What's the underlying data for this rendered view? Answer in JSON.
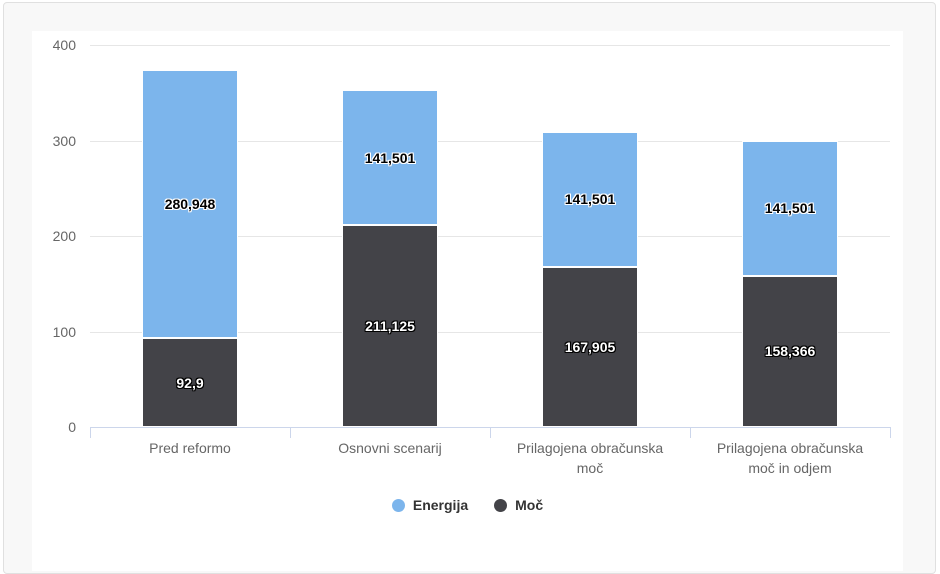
{
  "page": {
    "background": "#ffffff"
  },
  "card": {
    "background": "#f8f8f8",
    "border_color": "#e0e0e0"
  },
  "chart_data": {
    "type": "bar",
    "subtype": "stacked-column",
    "title": "",
    "xlabel": "",
    "ylabel": "",
    "categories": [
      "Pred reformo",
      "Osnovni scenarij",
      "Prilagojena obračunska moč",
      "Prilagojena obračunska moč in odjem"
    ],
    "series": [
      {
        "name": "Energija",
        "color": "#7cb5ec",
        "values": [
          280.948,
          141.501,
          141.501,
          141.501
        ],
        "labels": [
          "280,948",
          "141,501",
          "141,501",
          "141,501"
        ]
      },
      {
        "name": "Moč",
        "color": "#434348",
        "values": [
          92.9,
          211.125,
          167.905,
          158.366
        ],
        "labels": [
          "92,9",
          "211,125",
          "167,905",
          "158,366"
        ]
      }
    ],
    "stack_bottom_series": "Moč",
    "yticks": [
      0,
      100,
      200,
      300,
      400
    ],
    "ytick_labels": [
      "0",
      "100",
      "200",
      "300",
      "400"
    ],
    "ylim": [
      0,
      400
    ],
    "grid": true,
    "legend_position": "bottom",
    "colors": {
      "gridline": "#e6e6e6",
      "axis_line": "#ccd6eb",
      "axis_label_text": "#666666",
      "legend_text": "#333333",
      "plot_background": "#ffffff",
      "card_background": "#f8f8f8"
    }
  }
}
